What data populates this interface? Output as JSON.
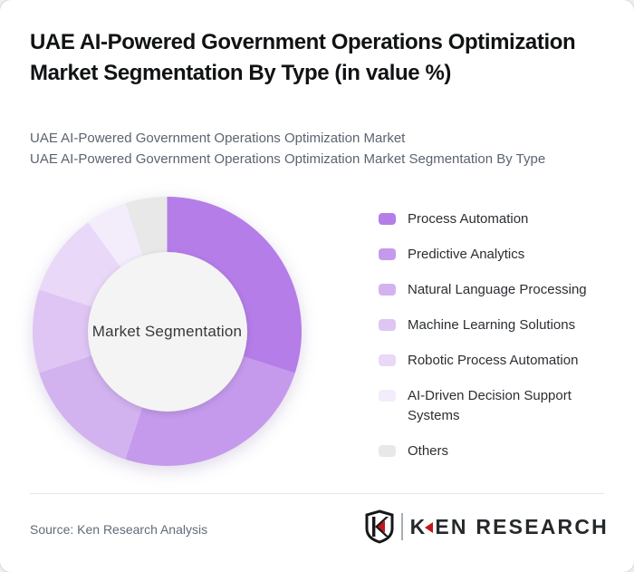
{
  "page": {
    "background": "#edeff2",
    "card_background": "#ffffff"
  },
  "header": {
    "title": "UAE AI-Powered Government Operations Optimization Market Segmentation By Type (in value %)",
    "subtitle_line1": "UAE AI-Powered Government Operations Optimization Market",
    "subtitle_line2": "UAE AI-Powered Government Operations Optimization Market Segmentation By Type"
  },
  "chart_data": {
    "type": "pie",
    "subtype": "donut",
    "title": "UAE AI-Powered Government Operations Optimization Market Segmentation By Type (in value %)",
    "center_label": "Market Segmentation",
    "units": "percent of market value",
    "start_angle_deg": 0,
    "donut_hole_ratio": 0.59,
    "legend_position": "right",
    "segments": [
      {
        "label": "Process Automation",
        "value": 30,
        "color": "#b57de8"
      },
      {
        "label": "Predictive Analytics",
        "value": 25,
        "color": "#c59aec"
      },
      {
        "label": "Natural Language Processing",
        "value": 15,
        "color": "#d2b3f0"
      },
      {
        "label": "Machine Learning Solutions",
        "value": 10,
        "color": "#dfc5f4"
      },
      {
        "label": "Robotic Process Automation",
        "value": 10,
        "color": "#e9d8f8"
      },
      {
        "label": "AI-Driven Decision Support Systems",
        "value": 5,
        "color": "#f3ecfb"
      },
      {
        "label": "Others",
        "value": 5,
        "color": "#e9e8e9"
      }
    ]
  },
  "footer": {
    "source": "Source: Ken Research Analysis",
    "logo": {
      "first_letter": "K",
      "rest": "EN RESEARCH",
      "accent_color": "#c4161c"
    }
  }
}
